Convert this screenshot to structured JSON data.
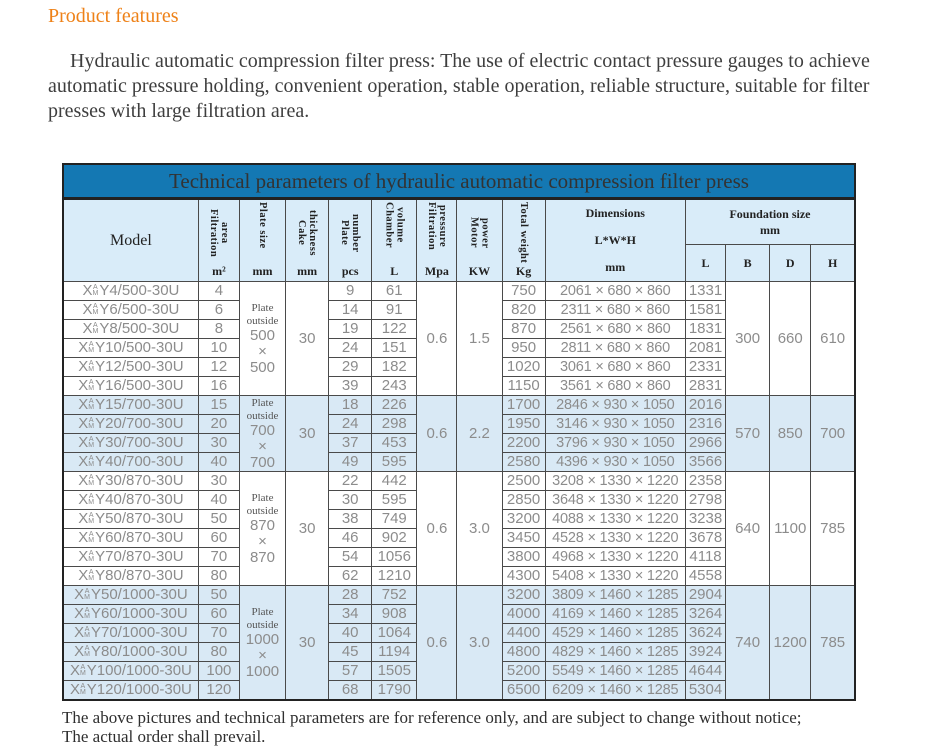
{
  "colors": {
    "accent_orange": "#ee8117",
    "title_bar_blue": "#1478b3",
    "header_bg": "#d9ecf9",
    "row_alt_bg": "#d9e9f5"
  },
  "page": {
    "section_title": "Product features",
    "intro": "Hydraulic automatic compression filter press: The use of electric contact pressure gauges to achieve automatic pressure holding, convenient operation, stable operation, reliable structure, suitable for filter presses with large filtration area.",
    "footer_line1": "The above pictures and technical parameters are for reference only, and are subject to change without notice;",
    "footer_line2": "The actual order shall prevail."
  },
  "table": {
    "title": "Technical parameters of hydraulic automatic compression filter press",
    "model_header": "Model",
    "model_prefix": {
      "base": "X",
      "top": "A",
      "bottom": "M"
    },
    "vcols": [
      {
        "lines": [
          "Filtration area"
        ],
        "unit": "m²"
      },
      {
        "lines": [
          "Plate size"
        ],
        "unit": "mm"
      },
      {
        "lines": [
          "Cake thickness"
        ],
        "unit": "mm"
      },
      {
        "lines": [
          "Plate number"
        ],
        "unit": "pcs"
      },
      {
        "lines": [
          "Chamber",
          "volume"
        ],
        "unit": "L"
      },
      {
        "lines": [
          "Filtration",
          "pressure"
        ],
        "unit": "Mpa"
      },
      {
        "lines": [
          "Motor power"
        ],
        "unit": "KW"
      },
      {
        "lines": [
          "Total weight"
        ],
        "unit": "Kg"
      }
    ],
    "dimensions_header": {
      "line1": "Dimensions",
      "line2": "L*W*H",
      "line3": "mm"
    },
    "foundation_header": {
      "title": "Foundation size",
      "unit": "mm",
      "cols": [
        "L",
        "B",
        "D",
        "H"
      ]
    },
    "groups": [
      {
        "plate_size": {
          "label": "Plate outside",
          "size": "500 × 500"
        },
        "cake_thickness": "30",
        "pressure": "0.6",
        "motor_power": "1.5",
        "foundation": {
          "B": "300",
          "D": "660",
          "H": "610"
        },
        "rows": [
          {
            "model": "Y4/500-30U",
            "area": "4",
            "plates": "9",
            "volume": "61",
            "weight": "750",
            "dimensions": "2061×680×860",
            "foundation_l": "1331"
          },
          {
            "model": "Y6/500-30U",
            "area": "6",
            "plates": "14",
            "volume": "91",
            "weight": "820",
            "dimensions": "2311×680×860",
            "foundation_l": "1581"
          },
          {
            "model": "Y8/500-30U",
            "area": "8",
            "plates": "19",
            "volume": "122",
            "weight": "870",
            "dimensions": "2561×680×860",
            "foundation_l": "1831"
          },
          {
            "model": "Y10/500-30U",
            "area": "10",
            "plates": "24",
            "volume": "151",
            "weight": "950",
            "dimensions": "2811×680×860",
            "foundation_l": "2081"
          },
          {
            "model": "Y12/500-30U",
            "area": "12",
            "plates": "29",
            "volume": "182",
            "weight": "1020",
            "dimensions": "3061×680×860",
            "foundation_l": "2331"
          },
          {
            "model": "Y16/500-30U",
            "area": "16",
            "plates": "39",
            "volume": "243",
            "weight": "1150",
            "dimensions": "3561×680×860",
            "foundation_l": "2831"
          }
        ]
      },
      {
        "plate_size": {
          "label": "Plate outside",
          "size": "700 × 700"
        },
        "cake_thickness": "30",
        "pressure": "0.6",
        "motor_power": "2.2",
        "foundation": {
          "B": "570",
          "D": "850",
          "H": "700"
        },
        "rows": [
          {
            "model": "Y15/700-30U",
            "area": "15",
            "plates": "18",
            "volume": "226",
            "weight": "1700",
            "dimensions": "2846×930×1050",
            "foundation_l": "2016"
          },
          {
            "model": "Y20/700-30U",
            "area": "20",
            "plates": "24",
            "volume": "298",
            "weight": "1950",
            "dimensions": "3146×930×1050",
            "foundation_l": "2316"
          },
          {
            "model": "Y30/700-30U",
            "area": "30",
            "plates": "37",
            "volume": "453",
            "weight": "2200",
            "dimensions": "3796×930×1050",
            "foundation_l": "2966"
          },
          {
            "model": "Y40/700-30U",
            "area": "40",
            "plates": "49",
            "volume": "595",
            "weight": "2580",
            "dimensions": "4396×930×1050",
            "foundation_l": "3566"
          }
        ]
      },
      {
        "plate_size": {
          "label": "Plate outside",
          "size": "870 × 870"
        },
        "cake_thickness": "30",
        "pressure": "0.6",
        "motor_power": "3.0",
        "foundation": {
          "B": "640",
          "D": "1100",
          "H": "785"
        },
        "rows": [
          {
            "model": "Y30/870-30U",
            "area": "30",
            "plates": "22",
            "volume": "442",
            "weight": "2500",
            "dimensions": "3208×1330×1220",
            "foundation_l": "2358"
          },
          {
            "model": "Y40/870-30U",
            "area": "40",
            "plates": "30",
            "volume": "595",
            "weight": "2850",
            "dimensions": "3648×1330×1220",
            "foundation_l": "2798"
          },
          {
            "model": "Y50/870-30U",
            "area": "50",
            "plates": "38",
            "volume": "749",
            "weight": "3200",
            "dimensions": "4088×1330×1220",
            "foundation_l": "3238"
          },
          {
            "model": "Y60/870-30U",
            "area": "60",
            "plates": "46",
            "volume": "902",
            "weight": "3450",
            "dimensions": "4528×1330×1220",
            "foundation_l": "3678"
          },
          {
            "model": "Y70/870-30U",
            "area": "70",
            "plates": "54",
            "volume": "1056",
            "weight": "3800",
            "dimensions": "4968×1330×1220",
            "foundation_l": "4118"
          },
          {
            "model": "Y80/870-30U",
            "area": "80",
            "plates": "62",
            "volume": "1210",
            "weight": "4300",
            "dimensions": "5408×1330×1220",
            "foundation_l": "4558"
          }
        ]
      },
      {
        "plate_size": {
          "label": "Plate outside",
          "size": "1000 × 1000"
        },
        "cake_thickness": "30",
        "pressure": "0.6",
        "motor_power": "3.0",
        "foundation": {
          "B": "740",
          "D": "1200",
          "H": "785"
        },
        "rows": [
          {
            "model": "Y50/1000-30U",
            "area": "50",
            "plates": "28",
            "volume": "752",
            "weight": "3200",
            "dimensions": "3809×1460×1285",
            "foundation_l": "2904"
          },
          {
            "model": "Y60/1000-30U",
            "area": "60",
            "plates": "34",
            "volume": "908",
            "weight": "4000",
            "dimensions": "4169×1460×1285",
            "foundation_l": "3264"
          },
          {
            "model": "Y70/1000-30U",
            "area": "70",
            "plates": "40",
            "volume": "1064",
            "weight": "4400",
            "dimensions": "4529×1460×1285",
            "foundation_l": "3624"
          },
          {
            "model": "Y80/1000-30U",
            "area": "80",
            "plates": "45",
            "volume": "1194",
            "weight": "4800",
            "dimensions": "4829×1460×1285",
            "foundation_l": "3924"
          },
          {
            "model": "Y100/1000-30U",
            "area": "100",
            "plates": "57",
            "volume": "1505",
            "weight": "5200",
            "dimensions": "5549×1460×1285",
            "foundation_l": "4644"
          },
          {
            "model": "Y120/1000-30U",
            "area": "120",
            "plates": "68",
            "volume": "1790",
            "weight": "6500",
            "dimensions": "6209×1460×1285",
            "foundation_l": "5304"
          }
        ]
      }
    ]
  }
}
